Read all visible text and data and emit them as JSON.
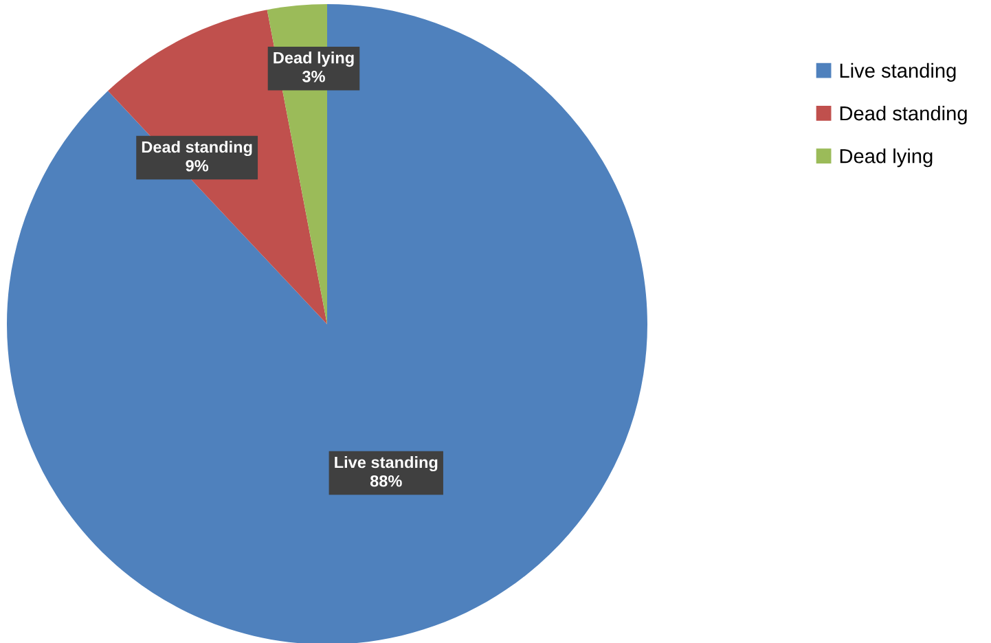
{
  "chart_data": {
    "type": "pie",
    "categories": [
      "Live standing",
      "Dead standing",
      "Dead lying"
    ],
    "values": [
      88,
      9,
      3
    ],
    "colors": [
      "#4f81bd",
      "#c0504d",
      "#9bbb59"
    ],
    "value_labels": [
      "Live standing\n88%",
      "Dead standing\n9%",
      "Dead lying\n3%"
    ],
    "legend": "top right"
  }
}
